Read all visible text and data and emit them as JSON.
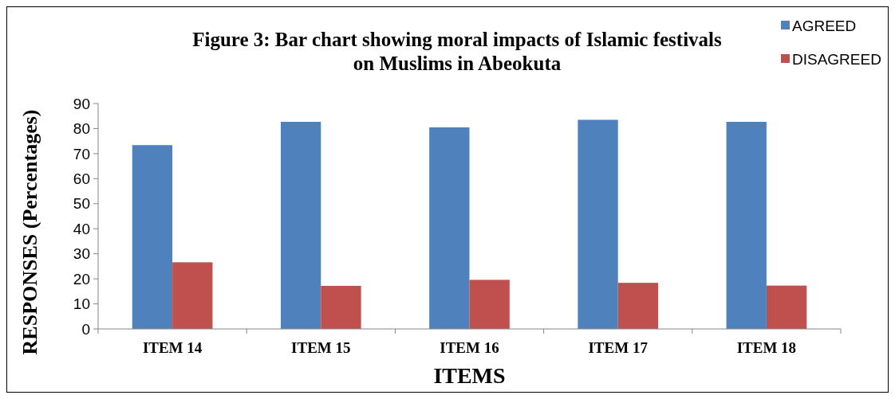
{
  "chart_data": {
    "type": "bar",
    "title": "Figure 3: Bar chart showing  moral impacts of Islamic festivals on Muslims in Abeokuta",
    "xlabel": "ITEMS",
    "ylabel": "RESPONSES (Percentages)",
    "categories": [
      "ITEM 14",
      "ITEM 15",
      "ITEM 16",
      "ITEM 17",
      "ITEM 18"
    ],
    "series": [
      {
        "name": "AGREED",
        "color": "#4f81bd",
        "values": [
          73.4,
          82.7,
          80.5,
          83.5,
          82.7
        ]
      },
      {
        "name": "DISAGREED",
        "color": "#c0504d",
        "values": [
          26.6,
          17.2,
          19.6,
          18.4,
          17.3
        ]
      }
    ],
    "ylim": [
      0,
      90
    ],
    "yticks": [
      0,
      10,
      20,
      30,
      40,
      50,
      60,
      70,
      80,
      90
    ],
    "grid": false,
    "legend": "top right"
  }
}
